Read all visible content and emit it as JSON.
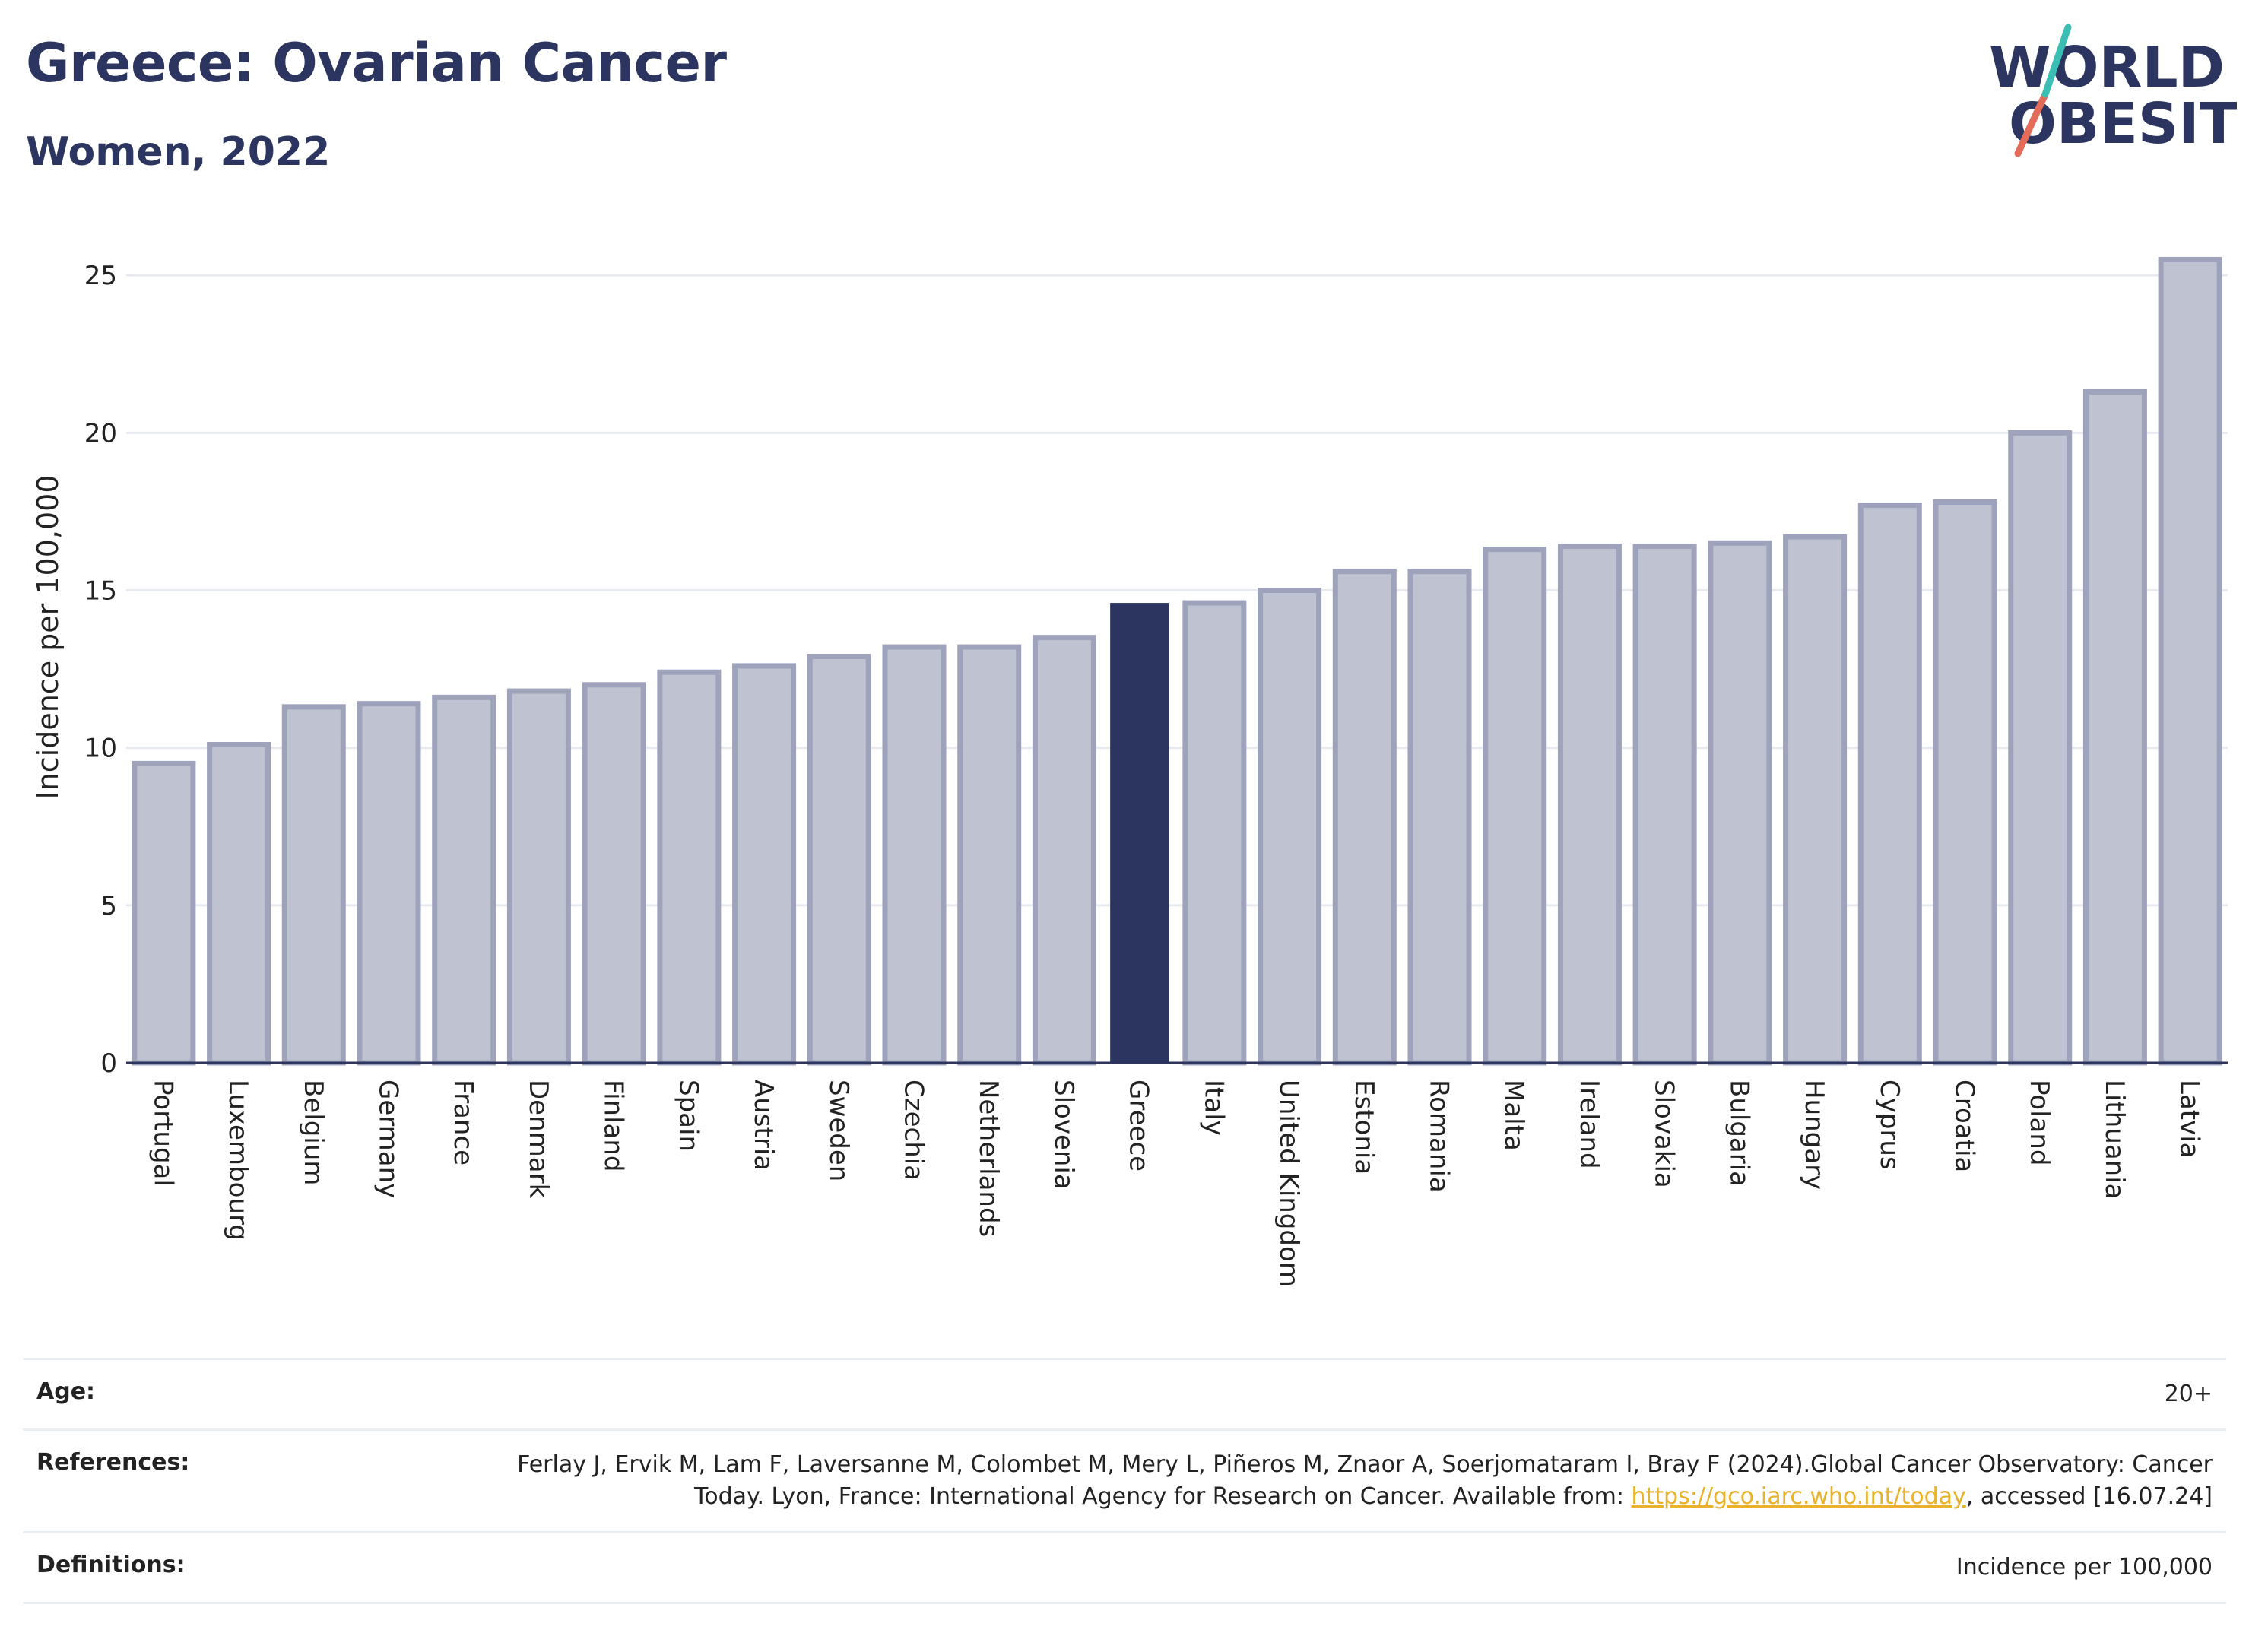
{
  "header": {
    "title": "Greece: Ovarian Cancer",
    "subtitle": "Women, 2022"
  },
  "logo": {
    "line1": "WORLD",
    "line2": "OBESITY"
  },
  "chart_data": {
    "type": "bar",
    "categories": [
      "Portugal",
      "Luxembourg",
      "Belgium",
      "Germany",
      "France",
      "Denmark",
      "Finland",
      "Spain",
      "Austria",
      "Sweden",
      "Czechia",
      "Netherlands",
      "Slovenia",
      "Greece",
      "Italy",
      "United Kingdom",
      "Estonia",
      "Romania",
      "Malta",
      "Ireland",
      "Slovakia",
      "Bulgaria",
      "Hungary",
      "Cyprus",
      "Croatia",
      "Poland",
      "Lithuania",
      "Latvia"
    ],
    "values": [
      9.5,
      10.1,
      11.3,
      11.4,
      11.6,
      11.8,
      12.0,
      12.4,
      12.6,
      12.9,
      13.2,
      13.2,
      13.5,
      14.6,
      14.6,
      15.0,
      15.6,
      15.6,
      16.3,
      16.4,
      16.4,
      16.5,
      16.7,
      17.7,
      17.8,
      20.0,
      21.3,
      25.5
    ],
    "highlight": "Greece",
    "ylabel": "Incidence per 100,000",
    "xlabel": "",
    "ylim": [
      0,
      26.5
    ],
    "yticks": [
      0,
      5,
      10,
      15,
      20,
      25
    ],
    "grid": true,
    "colors": {
      "bar": "#bfc2d0",
      "bar_border": "#9ea3bb",
      "highlight": "#2b3560",
      "grid": "#e6e9ef",
      "baseline": "#2b3560"
    }
  },
  "meta": {
    "age_label": "Age:",
    "age_value": "20+",
    "references_label": "References:",
    "references_text_1": "Ferlay J, Ervik M, Lam F, Laversanne M, Colombet M, Mery L, Piñeros M, Znaor A, Soerjomataram I, Bray F (2024).Global Cancer Observatory: Cancer Today. Lyon, France: International Agency for Research on Cancer. Available from: ",
    "references_link": "https://gco.iarc.who.int/today",
    "references_text_2": ", accessed [16.07.24]",
    "definitions_label": "Definitions:",
    "definitions_value": "Incidence per 100,000"
  },
  "colors": {
    "brand_navy": "#2b3560",
    "logo_teal": "#3bbfb4",
    "logo_coral": "#e46a5a",
    "link": "#e8b22a"
  }
}
